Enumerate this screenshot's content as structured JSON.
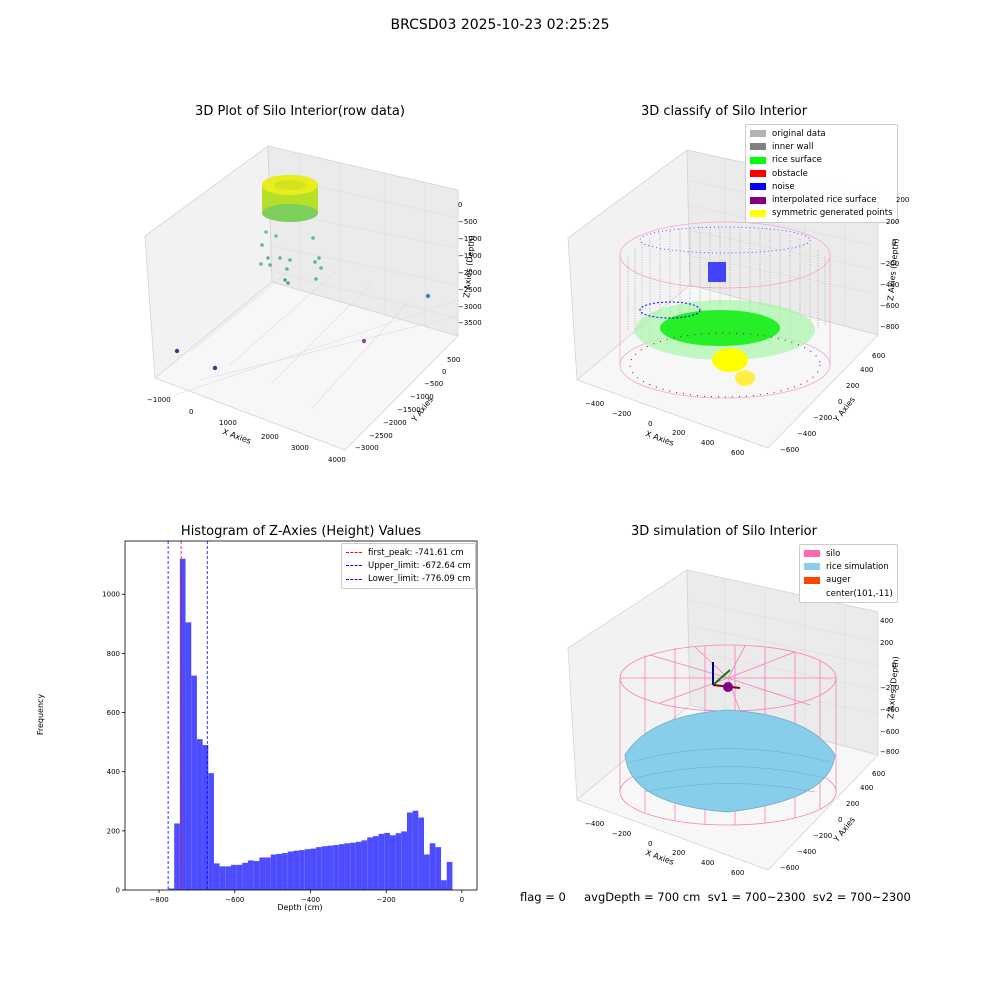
{
  "suptitle": "BRCSD03 2025-10-23 02:25:25",
  "chart_data": [
    {
      "type": "scatter",
      "title": "3D Plot of Silo Interior(row data)",
      "xlabel": "X Axies",
      "ylabel": "Y Axies",
      "zlabel": "Z Axies (Depth)",
      "x_ticks": [
        "−1000",
        "0",
        "1000",
        "2000",
        "3000",
        "4000"
      ],
      "y_ticks": [
        "500",
        "0",
        "−500",
        "−1000",
        "−1500",
        "−2000",
        "−2500",
        "−3000"
      ],
      "z_ticks": [
        "0",
        "−500",
        "−1000",
        "−1500",
        "−2000",
        "−2500",
        "−3000",
        "−3500"
      ],
      "outliers": [
        {
          "x": -900,
          "y": -2900,
          "z": -3700
        },
        {
          "x": -400,
          "y": -2600,
          "z": -3700
        },
        {
          "x": 3500,
          "y": 300,
          "z": -3600
        },
        {
          "x": 3300,
          "y": 400,
          "z": -2700
        }
      ]
    },
    {
      "type": "scatter",
      "title": "3D classify of Silo Interior",
      "xlabel": "X Axies",
      "ylabel": "Y Axies",
      "zlabel": "Z Axies (Depth)",
      "x_ticks": [
        "−400",
        "−200",
        "0",
        "200",
        "400",
        "600"
      ],
      "y_ticks": [
        "600",
        "400",
        "200",
        "0",
        "−200",
        "−400",
        "−600"
      ],
      "z_ticks": [
        "200",
        "0",
        "−200",
        "−400",
        "−600",
        "−800"
      ],
      "legend_top": "200",
      "legend_position": "upper right",
      "legend": [
        {
          "label": "original data",
          "color": "#b3b3b3"
        },
        {
          "label": "inner wall",
          "color": "#808080"
        },
        {
          "label": "rice surface",
          "color": "#00ff00"
        },
        {
          "label": "obstacle",
          "color": "#ff0000"
        },
        {
          "label": "noise",
          "color": "#0000ff"
        },
        {
          "label": "interpolated rice surface",
          "color": "#800080"
        },
        {
          "label": "symmetric generated points",
          "color": "#ffff00"
        }
      ]
    },
    {
      "type": "histogram",
      "title": "Histogram of Z-Axies (Height) Values",
      "xlabel": "Depth (cm)",
      "ylabel": "Frequency",
      "xlim": [
        -890,
        40
      ],
      "ylim": [
        0,
        1180
      ],
      "x_ticks": [
        -800,
        -600,
        -400,
        -200,
        0
      ],
      "y_ticks": [
        0,
        200,
        400,
        600,
        800,
        1000
      ],
      "bin_width": 15,
      "bins": [
        {
          "start": -775,
          "count": 5
        },
        {
          "start": -760,
          "count": 225
        },
        {
          "start": -745,
          "count": 1120
        },
        {
          "start": -730,
          "count": 905
        },
        {
          "start": -715,
          "count": 725
        },
        {
          "start": -700,
          "count": 510
        },
        {
          "start": -685,
          "count": 490
        },
        {
          "start": -670,
          "count": 395
        },
        {
          "start": -655,
          "count": 90
        },
        {
          "start": -640,
          "count": 80
        },
        {
          "start": -625,
          "count": 80
        },
        {
          "start": -610,
          "count": 85
        },
        {
          "start": -595,
          "count": 85
        },
        {
          "start": -580,
          "count": 92
        },
        {
          "start": -565,
          "count": 100
        },
        {
          "start": -550,
          "count": 98
        },
        {
          "start": -535,
          "count": 110
        },
        {
          "start": -520,
          "count": 110
        },
        {
          "start": -505,
          "count": 120
        },
        {
          "start": -490,
          "count": 122
        },
        {
          "start": -475,
          "count": 125
        },
        {
          "start": -460,
          "count": 130
        },
        {
          "start": -445,
          "count": 133
        },
        {
          "start": -430,
          "count": 135
        },
        {
          "start": -415,
          "count": 138
        },
        {
          "start": -400,
          "count": 140
        },
        {
          "start": -385,
          "count": 145
        },
        {
          "start": -370,
          "count": 148
        },
        {
          "start": -355,
          "count": 150
        },
        {
          "start": -340,
          "count": 152
        },
        {
          "start": -325,
          "count": 155
        },
        {
          "start": -310,
          "count": 158
        },
        {
          "start": -295,
          "count": 160
        },
        {
          "start": -280,
          "count": 163
        },
        {
          "start": -265,
          "count": 168
        },
        {
          "start": -250,
          "count": 178
        },
        {
          "start": -235,
          "count": 182
        },
        {
          "start": -220,
          "count": 190
        },
        {
          "start": -205,
          "count": 193
        },
        {
          "start": -190,
          "count": 185
        },
        {
          "start": -175,
          "count": 192
        },
        {
          "start": -160,
          "count": 198
        },
        {
          "start": -145,
          "count": 262
        },
        {
          "start": -130,
          "count": 268
        },
        {
          "start": -115,
          "count": 245
        },
        {
          "start": -100,
          "count": 120
        },
        {
          "start": -85,
          "count": 158
        },
        {
          "start": -70,
          "count": 145
        },
        {
          "start": -55,
          "count": 33
        },
        {
          "start": -40,
          "count": 95
        }
      ],
      "lines": [
        {
          "label": "first_peak: -741.61 cm",
          "value": -741.61,
          "color": "#ff0000"
        },
        {
          "label": "Upper_limit: -672.64 cm",
          "value": -672.64,
          "color": "#0000ff"
        },
        {
          "label": "Lower_limit: -776.09 cm",
          "value": -776.09,
          "color": "#0000ff"
        }
      ],
      "bar_color": "#4d4dff",
      "legend_position": "upper right"
    },
    {
      "type": "surface",
      "title": "3D simulation of Silo Interior",
      "xlabel": "X Axies",
      "ylabel": "Y Axies",
      "zlabel": "Z Axies (Depth)",
      "x_ticks": [
        "−400",
        "−200",
        "0",
        "200",
        "400",
        "600"
      ],
      "y_ticks": [
        "600",
        "400",
        "200",
        "0",
        "−200",
        "−400",
        "−600"
      ],
      "z_ticks": [
        "400",
        "200",
        "0",
        "−200",
        "−400",
        "−600",
        "−800"
      ],
      "legend_position": "upper right",
      "legend": [
        {
          "label": "silo",
          "color": "#ff69b4"
        },
        {
          "label": "rice simulation",
          "color": "#87ceeb"
        },
        {
          "label": "auger",
          "color": "#ff4500"
        },
        {
          "label": "center(101,-11)",
          "color": ""
        }
      ]
    }
  ],
  "footer": "flag = 0     avgDepth = 700 cm  sv1 = 700~2300  sv2 = 700~2300"
}
